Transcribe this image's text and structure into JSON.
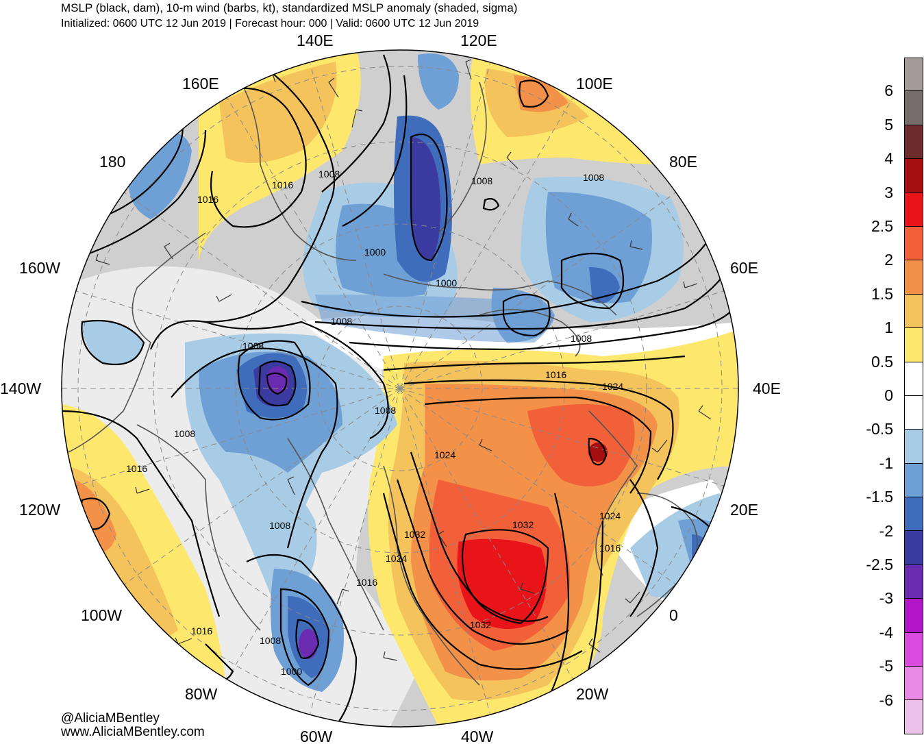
{
  "title": "MSLP (black, dam), 10-m wind (barbs, kt), standardized MSLP anomaly (shaded, sigma)",
  "subtitle": "Initialized: 0600 UTC 12 Jun 2019 | Forecast hour: 000 | Valid: 0600 UTC 12 Jun 2019",
  "credits": [
    "@AliciaMBentley",
    "www.AliciaMBentley.com"
  ],
  "longitude_labels": [
    "140E",
    "120E",
    "160E",
    "100E",
    "180",
    "80E",
    "160W",
    "60E",
    "140W",
    "40E",
    "120W",
    "20E",
    "100W",
    "0",
    "80W",
    "20W",
    "60W",
    "40W"
  ],
  "isobar_labels": [
    "1016",
    "1016",
    "1008",
    "1008",
    "1008",
    "1000",
    "1000",
    "1008",
    "1008",
    "1008",
    "1016",
    "1024",
    "1008",
    "1008",
    "1024",
    "1016",
    "1024",
    "1032",
    "1032",
    "1024",
    "1008",
    "1016",
    "1016",
    "1032",
    "1016",
    "1008",
    "1000"
  ],
  "colorbar": {
    "labels": [
      "6",
      "5",
      "4",
      "3",
      "2.5",
      "2",
      "1.5",
      "1",
      "0.5",
      "0",
      "-0.5",
      "-1",
      "-1.5",
      "-2",
      "-2.5",
      "-3",
      "-4",
      "-5",
      "-6"
    ],
    "colors": [
      "#a39a9a",
      "#756c6c",
      "#6e2b2b",
      "#a50f0f",
      "#e8141a",
      "#f2603a",
      "#f39149",
      "#f4c35c",
      "#fde86d",
      "#ffffff",
      "#ffffff",
      "#a8cce6",
      "#6e9fd5",
      "#3f6cbb",
      "#3b3aa0",
      "#6a2bb0",
      "#b315c9",
      "#d94bdc",
      "#e989e6",
      "#ecc2ea"
    ]
  },
  "legend_colors": {
    "land_outline": "#555555",
    "gray_neutral": "#cfcfcf"
  }
}
